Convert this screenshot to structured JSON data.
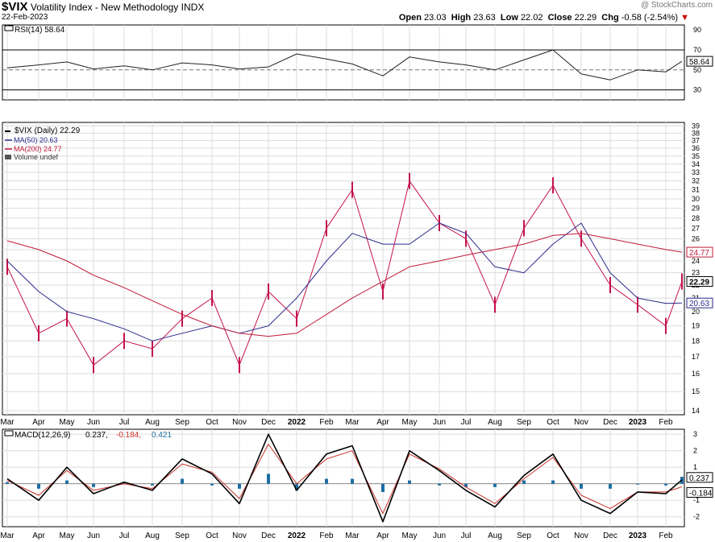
{
  "header": {
    "symbol": "$VIX",
    "name": "Volatility Index - New Methodology",
    "exchange": "INDX",
    "date": "22-Feb-2023",
    "copyright": "@ StockCharts.com",
    "open_label": "Open",
    "open": "23.03",
    "high_label": "High",
    "high": "23.63",
    "low_label": "Low",
    "low": "22.02",
    "close_label": "Close",
    "close": "22.29",
    "chg_label": "Chg",
    "chg": "-0.58 (-2.54%)",
    "chg_arrow": "▼"
  },
  "colors": {
    "price": "#c4124a",
    "ma50": "#2a2a8c",
    "ma200": "#c01a3a",
    "macd_hist": "#1f6fa3",
    "macd_signal": "#c8342a",
    "macd_line": "#000000",
    "grid": "#dcdcdc"
  },
  "chart_data": [
    {
      "type": "line",
      "panel": "RSI",
      "legend": "RSI(14) 58.64",
      "current_value": 58.64,
      "ylim": [
        20,
        95
      ],
      "ticks": [
        30,
        50,
        70,
        90
      ],
      "reference_lines": [
        30,
        50,
        70
      ],
      "value_label": "58.64",
      "series": [
        {
          "name": "RSI(14)",
          "x": [
            "Mar",
            "Apr",
            "May",
            "Jun",
            "Jul",
            "Aug",
            "Sep",
            "Oct",
            "Nov",
            "Dec",
            "2022",
            "Feb",
            "Mar",
            "Apr",
            "May",
            "Jun",
            "Jul",
            "Aug",
            "Sep",
            "Oct",
            "Nov",
            "Dec",
            "2023",
            "Feb",
            "Feb-22"
          ],
          "values": [
            52,
            55,
            58,
            51,
            54,
            50,
            57,
            55,
            51,
            53,
            66,
            61,
            56,
            44,
            63,
            58,
            55,
            50,
            60,
            70,
            46,
            40,
            50,
            48,
            58.64
          ]
        }
      ]
    },
    {
      "type": "line",
      "panel": "Price",
      "title": "$VIX (Daily) 22.29",
      "legend": [
        {
          "label": "$VIX (Daily) 22.29",
          "color": "#000000"
        },
        {
          "label": "MA(50) 20.63",
          "color": "#2a2a8c"
        },
        {
          "label": "MA(200) 24.77",
          "color": "#c01a3a"
        },
        {
          "label": "Volume undef",
          "color": "#555555"
        }
      ],
      "yscale": "log",
      "ylim": [
        13.8,
        39.5
      ],
      "ticks": [
        14,
        15,
        16,
        17,
        18,
        19,
        20,
        21,
        22,
        23,
        24,
        25,
        26,
        27,
        28,
        29,
        30,
        31,
        32,
        33,
        34,
        35,
        36,
        37,
        38,
        39
      ],
      "x_ticks": [
        "Mar",
        "Apr",
        "May",
        "Jun",
        "Jul",
        "Aug",
        "Sep",
        "Oct",
        "Nov",
        "Dec",
        "2022",
        "Feb",
        "Mar",
        "Apr",
        "May",
        "Jun",
        "Jul",
        "Aug",
        "Sep",
        "Oct",
        "Nov",
        "Dec",
        "2023",
        "Feb"
      ],
      "value_labels": [
        {
          "text": "24.77",
          "value": 24.77,
          "color": "#c01a3a"
        },
        {
          "text": "22.29",
          "value": 22.29,
          "color": "#000000"
        },
        {
          "text": "20.63",
          "value": 20.63,
          "color": "#2a2a8c"
        }
      ],
      "series": [
        {
          "name": "$VIX (Daily)",
          "x": [
            "Mar",
            "Apr",
            "May",
            "Jun",
            "Jul",
            "Aug",
            "Sep",
            "Oct",
            "Nov",
            "Dec",
            "2022",
            "Feb",
            "Mar",
            "Apr",
            "May",
            "Jun",
            "Jul",
            "Aug",
            "Sep",
            "Oct",
            "Nov",
            "Dec",
            "2023",
            "Feb",
            "Feb-22"
          ],
          "values": [
            23.5,
            18.5,
            19.5,
            16.5,
            18.0,
            17.5,
            19.5,
            21.0,
            16.5,
            21.5,
            19.5,
            27.0,
            31.0,
            21.5,
            32.0,
            27.5,
            26.0,
            20.5,
            27.0,
            31.5,
            26.0,
            22.0,
            20.5,
            19.0,
            22.29
          ]
        },
        {
          "name": "MA(50)",
          "x": [
            "Mar",
            "Apr",
            "May",
            "Jun",
            "Jul",
            "Aug",
            "Sep",
            "Oct",
            "Nov",
            "Dec",
            "2022",
            "Feb",
            "Mar",
            "Apr",
            "May",
            "Jun",
            "Jul",
            "Aug",
            "Sep",
            "Oct",
            "Nov",
            "Dec",
            "2023",
            "Feb",
            "Feb-22"
          ],
          "values": [
            24.0,
            21.5,
            20.0,
            19.5,
            18.8,
            18.0,
            18.5,
            19.0,
            18.5,
            19.0,
            21.0,
            24.0,
            26.5,
            25.5,
            25.5,
            27.5,
            26.5,
            23.5,
            23.0,
            25.5,
            27.5,
            23.0,
            21.0,
            20.6,
            20.63
          ]
        },
        {
          "name": "MA(200)",
          "x": [
            "Mar",
            "Apr",
            "May",
            "Jun",
            "Jul",
            "Aug",
            "Sep",
            "Oct",
            "Nov",
            "Dec",
            "2022",
            "Feb",
            "Mar",
            "Apr",
            "May",
            "Jun",
            "Jul",
            "Aug",
            "Sep",
            "Oct",
            "Nov",
            "Dec",
            "2023",
            "Feb",
            "Feb-22"
          ],
          "values": [
            25.8,
            25.0,
            24.0,
            22.8,
            21.8,
            20.8,
            19.8,
            19.0,
            18.5,
            18.3,
            18.5,
            19.8,
            21.0,
            22.3,
            23.5,
            24.0,
            24.5,
            25.0,
            25.5,
            26.3,
            26.5,
            26.0,
            25.5,
            25.0,
            24.77
          ]
        }
      ]
    },
    {
      "type": "line",
      "panel": "MACD",
      "legend": [
        {
          "label": "MACD(12,26,9)",
          "color": "#000000"
        },
        {
          "label": "0.237",
          "color": "#000000"
        },
        {
          "label": "-0.184",
          "color": "#c8342a"
        },
        {
          "label": "0.421",
          "color": "#1f6fa3"
        }
      ],
      "ylim": [
        -2.6,
        3.3
      ],
      "ticks": [
        -2,
        -1,
        0,
        1,
        2,
        3
      ],
      "tick_labels": [
        "-2",
        "-1",
        "",
        "1",
        "2",
        "3"
      ],
      "value_labels": [
        {
          "text": "0.237",
          "value": 0.237
        },
        {
          "text": "-0.184",
          "value": -0.184
        }
      ],
      "x_ticks": [
        "Mar",
        "Apr",
        "May",
        "Jun",
        "Jul",
        "Aug",
        "Sep",
        "Oct",
        "Nov",
        "Dec",
        "2022",
        "Feb",
        "Mar",
        "Apr",
        "May",
        "Jun",
        "Jul",
        "Aug",
        "Sep",
        "Oct",
        "Nov",
        "Dec",
        "2023",
        "Feb"
      ],
      "series": [
        {
          "name": "MACD",
          "x": [
            "Mar",
            "Apr",
            "May",
            "Jun",
            "Jul",
            "Aug",
            "Sep",
            "Oct",
            "Nov",
            "Dec",
            "2022",
            "Feb",
            "Mar",
            "Apr",
            "May",
            "Jun",
            "Jul",
            "Aug",
            "Sep",
            "Oct",
            "Nov",
            "Dec",
            "2023",
            "Feb",
            "Feb-22"
          ],
          "values": [
            0.3,
            -1.0,
            1.0,
            -0.6,
            0.1,
            -0.4,
            1.5,
            0.6,
            -1.2,
            3.0,
            -0.4,
            1.8,
            2.3,
            -2.3,
            2.0,
            0.8,
            -0.4,
            -1.4,
            0.5,
            1.8,
            -1.0,
            -1.8,
            -0.5,
            -0.6,
            0.237
          ]
        },
        {
          "name": "Signal",
          "x": [
            "Mar",
            "Apr",
            "May",
            "Jun",
            "Jul",
            "Aug",
            "Sep",
            "Oct",
            "Nov",
            "Dec",
            "2022",
            "Feb",
            "Mar",
            "Apr",
            "May",
            "Jun",
            "Jul",
            "Aug",
            "Sep",
            "Oct",
            "Nov",
            "Dec",
            "2023",
            "Feb",
            "Feb-22"
          ],
          "values": [
            0.2,
            -0.7,
            0.8,
            -0.4,
            0.0,
            -0.3,
            1.2,
            0.7,
            -0.9,
            2.4,
            0.0,
            1.5,
            2.0,
            -1.8,
            1.8,
            0.9,
            -0.2,
            -1.2,
            0.3,
            1.6,
            -0.7,
            -1.5,
            -0.5,
            -0.5,
            -0.184
          ]
        },
        {
          "name": "Histogram",
          "x": [
            "Mar",
            "Apr",
            "May",
            "Jun",
            "Jul",
            "Aug",
            "Sep",
            "Oct",
            "Nov",
            "Dec",
            "2022",
            "Feb",
            "Mar",
            "Apr",
            "May",
            "Jun",
            "Jul",
            "Aug",
            "Sep",
            "Oct",
            "Nov",
            "Dec",
            "2023",
            "Feb",
            "Feb-22"
          ],
          "values": [
            0.1,
            -0.3,
            0.2,
            -0.2,
            0.1,
            -0.1,
            0.3,
            -0.1,
            -0.3,
            0.6,
            -0.4,
            0.3,
            0.3,
            -0.5,
            0.2,
            -0.1,
            -0.2,
            -0.2,
            0.2,
            0.2,
            -0.3,
            -0.3,
            0.0,
            -0.1,
            0.421
          ]
        }
      ]
    }
  ]
}
